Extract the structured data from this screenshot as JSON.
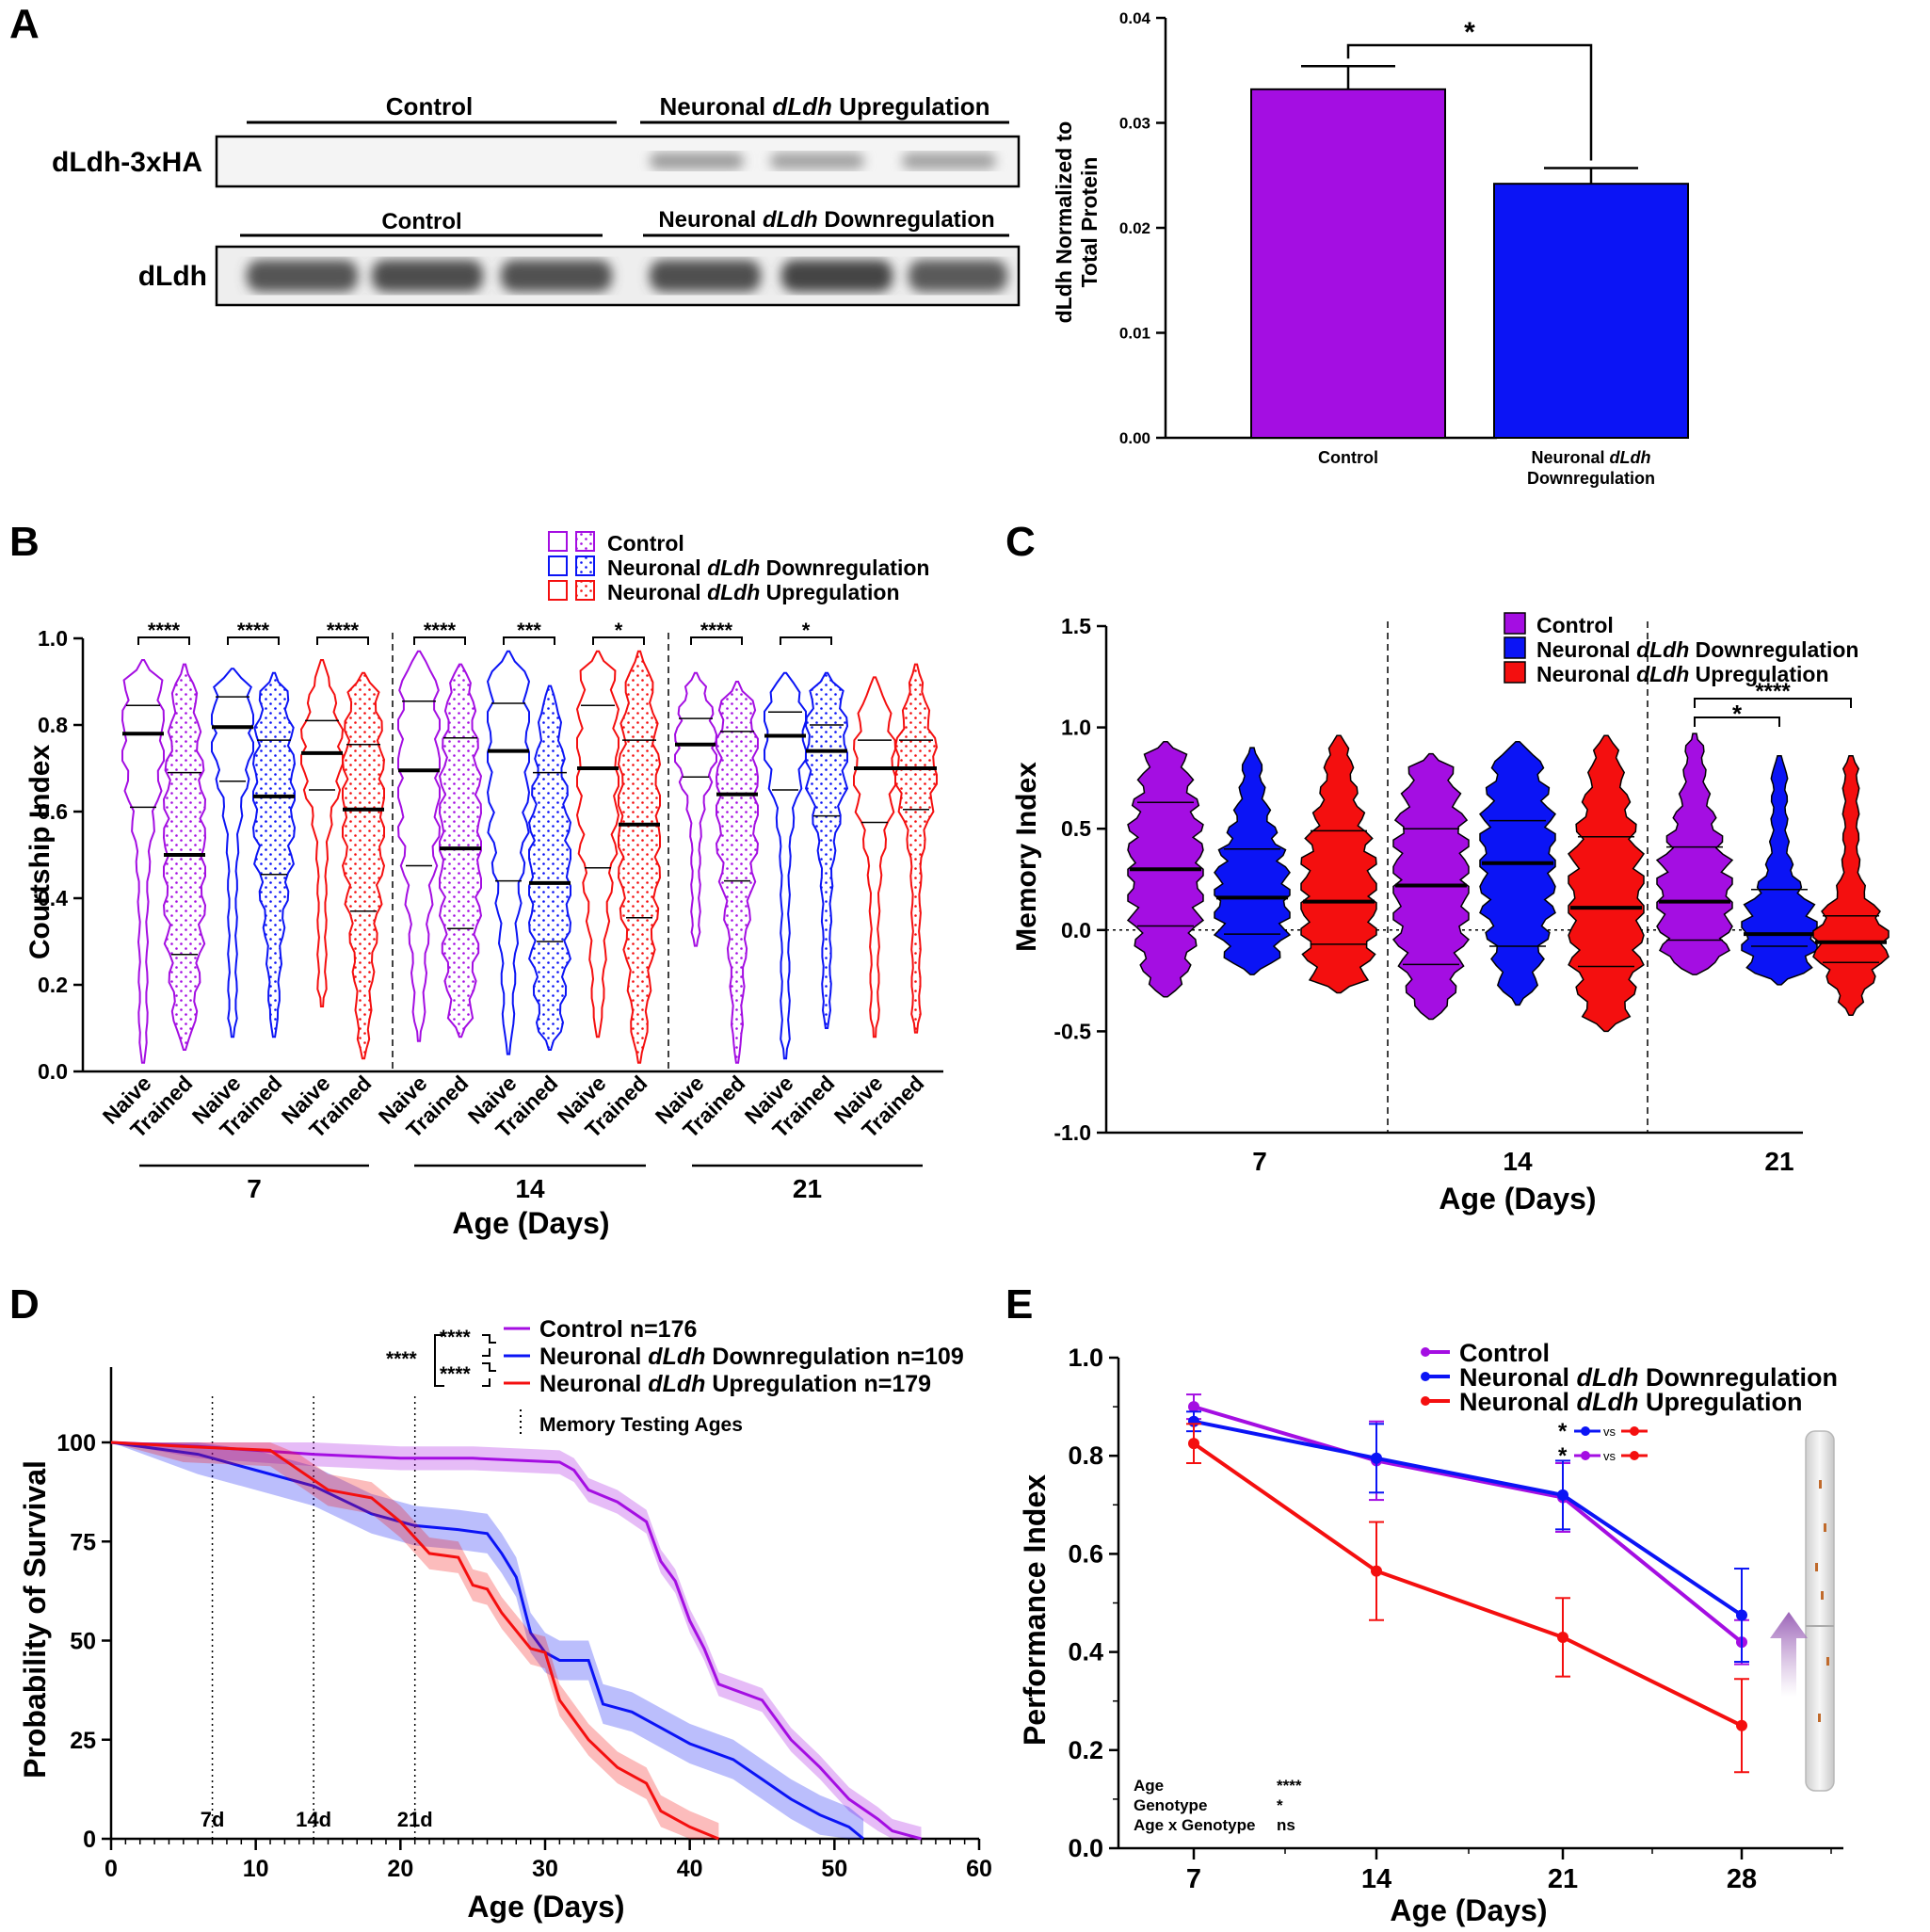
{
  "colors": {
    "control": "#a40ee2",
    "down": "#0b14f5",
    "up": "#f40f0f",
    "axis": "#000000",
    "blot_bg": "#f4f4f4"
  },
  "panel_labels": [
    "A",
    "B",
    "C",
    "D",
    "E"
  ],
  "panelA": {
    "blot_top": {
      "row_label": "dLdh-3xHA",
      "left_group": "Control",
      "right_group_prefix": "Neuronal ",
      "right_group_italic": "dLdh",
      "right_group_suffix": " Upregulation"
    },
    "blot_bottom": {
      "row_label": "dLdh",
      "left_group": "Control",
      "right_group_prefix": "Neuronal ",
      "right_group_italic": "dLdh",
      "right_group_suffix": " Downregulation"
    }
  },
  "chart_data": [
    {
      "id": "A-bar",
      "type": "bar",
      "ylabel_line1": "dLdh Normalized to",
      "ylabel_line2": "Total Protein",
      "ylim": [
        0,
        0.04
      ],
      "yticks": [
        "0.00",
        "0.01",
        "0.02",
        "0.03",
        "0.04"
      ],
      "categories": [
        "Control",
        "Neuronal dLdh Downregulation"
      ],
      "category_label_lines": [
        [
          "Control"
        ],
        [
          "Neuronal dLdh",
          "Downregulation"
        ]
      ],
      "values": [
        0.0332,
        0.0242
      ],
      "errors": [
        0.0022,
        0.0015
      ],
      "significance": "*"
    },
    {
      "id": "B-violin",
      "type": "violin",
      "ylabel": "Courtship Index",
      "xlabel": "Age (Days)",
      "ylim": [
        0,
        1.0
      ],
      "yticks": [
        "0.0",
        "0.2",
        "0.4",
        "0.6",
        "0.8",
        "1.0"
      ],
      "ages": [
        "7",
        "14",
        "21"
      ],
      "conditions": [
        "Naive",
        "Trained"
      ],
      "legend": [
        {
          "prefix": "Control",
          "italic": "",
          "suffix": ""
        },
        {
          "prefix": "Neuronal ",
          "italic": "dLdh",
          "suffix": " Downregulation"
        },
        {
          "prefix": "Neuronal ",
          "italic": "dLdh",
          "suffix": " Upregulation"
        }
      ],
      "groups": [
        {
          "age": "7",
          "genotype": "Control",
          "naive": {
            "median": 0.78,
            "q1": 0.61,
            "q3": 0.845,
            "min": 0.02,
            "max": 0.95
          },
          "trained": {
            "median": 0.5,
            "q1": 0.27,
            "q3": 0.69,
            "min": 0.05,
            "max": 0.94
          },
          "sig": "****"
        },
        {
          "age": "7",
          "genotype": "Downregulation",
          "naive": {
            "median": 0.795,
            "q1": 0.67,
            "q3": 0.865,
            "min": 0.08,
            "max": 0.93
          },
          "trained": {
            "median": 0.635,
            "q1": 0.455,
            "q3": 0.765,
            "min": 0.08,
            "max": 0.92
          },
          "sig": "****"
        },
        {
          "age": "7",
          "genotype": "Upregulation",
          "naive": {
            "median": 0.735,
            "q1": 0.65,
            "q3": 0.81,
            "min": 0.15,
            "max": 0.95
          },
          "trained": {
            "median": 0.605,
            "q1": 0.37,
            "q3": 0.755,
            "min": 0.03,
            "max": 0.92
          },
          "sig": "****"
        },
        {
          "age": "14",
          "genotype": "Control",
          "naive": {
            "median": 0.695,
            "q1": 0.475,
            "q3": 0.855,
            "min": 0.07,
            "max": 0.97
          },
          "trained": {
            "median": 0.515,
            "q1": 0.33,
            "q3": 0.77,
            "min": 0.08,
            "max": 0.94
          },
          "sig": "****"
        },
        {
          "age": "14",
          "genotype": "Downregulation",
          "naive": {
            "median": 0.74,
            "q1": 0.44,
            "q3": 0.85,
            "min": 0.04,
            "max": 0.97
          },
          "trained": {
            "median": 0.435,
            "q1": 0.3,
            "q3": 0.69,
            "min": 0.05,
            "max": 0.89
          },
          "sig": "***"
        },
        {
          "age": "14",
          "genotype": "Upregulation",
          "naive": {
            "median": 0.7,
            "q1": 0.47,
            "q3": 0.845,
            "min": 0.08,
            "max": 0.97
          },
          "trained": {
            "median": 0.57,
            "q1": 0.355,
            "q3": 0.765,
            "min": 0.02,
            "max": 0.97
          },
          "sig": "*"
        },
        {
          "age": "21",
          "genotype": "Control",
          "naive": {
            "median": 0.755,
            "q1": 0.68,
            "q3": 0.815,
            "min": 0.29,
            "max": 0.92
          },
          "trained": {
            "median": 0.64,
            "q1": 0.44,
            "q3": 0.785,
            "min": 0.02,
            "max": 0.9
          },
          "sig": "****"
        },
        {
          "age": "21",
          "genotype": "Downregulation",
          "naive": {
            "median": 0.775,
            "q1": 0.65,
            "q3": 0.83,
            "min": 0.03,
            "max": 0.92
          },
          "trained": {
            "median": 0.74,
            "q1": 0.59,
            "q3": 0.8,
            "min": 0.1,
            "max": 0.92
          },
          "sig": "*"
        },
        {
          "age": "21",
          "genotype": "Upregulation",
          "naive": {
            "median": 0.7,
            "q1": 0.575,
            "q3": 0.765,
            "min": 0.08,
            "max": 0.91
          },
          "trained": {
            "median": 0.7,
            "q1": 0.605,
            "q3": 0.765,
            "min": 0.09,
            "max": 0.94
          },
          "sig": ""
        }
      ]
    },
    {
      "id": "C-violin",
      "type": "violin",
      "ylabel": "Memory Index",
      "xlabel": "Age (Days)",
      "ylim": [
        -1.0,
        1.5
      ],
      "yticks": [
        "-1.0",
        "-0.5",
        "0.0",
        "0.5",
        "1.0",
        "1.5"
      ],
      "ages": [
        "7",
        "14",
        "21"
      ],
      "legend": [
        {
          "prefix": "Control",
          "italic": "",
          "suffix": ""
        },
        {
          "prefix": "Neuronal ",
          "italic": "dLdh",
          "suffix": " Downregulation"
        },
        {
          "prefix": "Neuronal ",
          "italic": "dLdh",
          "suffix": " Upregulation"
        }
      ],
      "groups": [
        {
          "age": "7",
          "genotype": "Control",
          "median": 0.3,
          "q1": 0.02,
          "q3": 0.63,
          "min": -0.33,
          "max": 0.93
        },
        {
          "age": "7",
          "genotype": "Downregulation",
          "median": 0.16,
          "q1": -0.02,
          "q3": 0.4,
          "min": -0.22,
          "max": 0.9
        },
        {
          "age": "7",
          "genotype": "Upregulation",
          "median": 0.14,
          "q1": -0.07,
          "q3": 0.49,
          "min": -0.31,
          "max": 0.96
        },
        {
          "age": "14",
          "genotype": "Control",
          "median": 0.22,
          "q1": -0.17,
          "q3": 0.5,
          "min": -0.44,
          "max": 0.87
        },
        {
          "age": "14",
          "genotype": "Downregulation",
          "median": 0.33,
          "q1": -0.08,
          "q3": 0.54,
          "min": -0.37,
          "max": 0.93
        },
        {
          "age": "14",
          "genotype": "Upregulation",
          "median": 0.11,
          "q1": -0.18,
          "q3": 0.46,
          "min": -0.5,
          "max": 0.96
        },
        {
          "age": "21",
          "genotype": "Control",
          "median": 0.14,
          "q1": -0.05,
          "q3": 0.41,
          "min": -0.22,
          "max": 0.97
        },
        {
          "age": "21",
          "genotype": "Downregulation",
          "median": -0.02,
          "q1": -0.08,
          "q3": 0.2,
          "min": -0.27,
          "max": 0.86
        },
        {
          "age": "21",
          "genotype": "Upregulation",
          "median": -0.06,
          "q1": -0.16,
          "q3": 0.07,
          "min": -0.42,
          "max": 0.86
        }
      ],
      "significance": [
        {
          "age": "21",
          "from": "Control",
          "to": "Downregulation",
          "label": "*"
        },
        {
          "age": "21",
          "from": "Control",
          "to": "Upregulation",
          "label": "****"
        }
      ]
    },
    {
      "id": "D-survival",
      "type": "line",
      "ylabel": "Probability of Survival",
      "xlabel": "Age (Days)",
      "xlim": [
        0,
        60
      ],
      "ylim": [
        0,
        110
      ],
      "xticks": [
        "0",
        "10",
        "20",
        "30",
        "40",
        "50",
        "60"
      ],
      "yticks": [
        "0",
        "25",
        "50",
        "75",
        "100"
      ],
      "testing_ages": [
        7,
        14,
        21
      ],
      "testing_age_labels": [
        "7d",
        "14d",
        "21d"
      ],
      "testing_legend": "Memory Testing Ages",
      "stats_outer": "****",
      "stats_pair1": "****",
      "stats_pair2": "****",
      "series": [
        {
          "name_prefix": "Control n=176",
          "name_italic": "",
          "name_suffix": "",
          "key": "control",
          "x": [
            0,
            6,
            10,
            14,
            20,
            25,
            31,
            32,
            33,
            35,
            37,
            38,
            39,
            40,
            41,
            42,
            45,
            47,
            49,
            51,
            53,
            54,
            55,
            56
          ],
          "y": [
            100,
            99,
            98,
            97,
            96,
            96,
            95,
            93,
            88,
            85,
            80,
            70,
            65,
            55,
            48,
            39,
            35,
            25,
            18,
            10,
            5,
            2,
            1,
            0
          ],
          "band": 3
        },
        {
          "name_prefix": "Neuronal ",
          "name_italic": "dLdh",
          "name_suffix": " Downregulation n=109",
          "key": "down",
          "x": [
            0,
            6,
            10,
            14,
            18,
            21,
            24,
            26,
            27,
            28,
            29,
            30,
            31,
            33,
            34,
            36,
            38,
            40,
            43,
            45,
            47,
            49,
            51,
            52
          ],
          "y": [
            100,
            97,
            93,
            89,
            82,
            79,
            78,
            77,
            72,
            66,
            52,
            47,
            45,
            45,
            34,
            32,
            28,
            24,
            20,
            15,
            10,
            6,
            3,
            0
          ],
          "band": 5
        },
        {
          "name_prefix": "Neuronal ",
          "name_italic": "dLdh",
          "name_suffix": " Upregulation n=179",
          "key": "up",
          "x": [
            0,
            5,
            11,
            13,
            15,
            18,
            20,
            22,
            24,
            25,
            26,
            27,
            29,
            30,
            31,
            33,
            35,
            37,
            38,
            40,
            42
          ],
          "y": [
            100,
            99,
            98,
            93,
            88,
            86,
            80,
            72,
            71,
            64,
            63,
            57,
            48,
            47,
            35,
            25,
            18,
            14,
            7,
            3,
            0
          ],
          "band": 4
        }
      ]
    },
    {
      "id": "E-performance",
      "type": "line",
      "ylabel": "Performance  Index",
      "xlabel": "Age (Days)",
      "ylim": [
        0,
        1.0
      ],
      "yticks": [
        "0.0",
        "0.2",
        "0.4",
        "0.6",
        "0.8",
        "1.0"
      ],
      "x": [
        "7",
        "14",
        "21",
        "28"
      ],
      "series": [
        {
          "name_prefix": "Control",
          "name_italic": "",
          "name_suffix": "",
          "key": "control",
          "values": [
            0.9,
            0.79,
            0.715,
            0.42
          ],
          "errors": [
            0.025,
            0.08,
            0.07,
            0.045
          ]
        },
        {
          "name_prefix": "Neuronal ",
          "name_italic": "dLdh",
          "name_suffix": " Downregulation",
          "key": "down",
          "values": [
            0.87,
            0.795,
            0.72,
            0.475
          ],
          "errors": [
            0.02,
            0.07,
            0.07,
            0.095
          ]
        },
        {
          "name_prefix": "Neuronal ",
          "name_italic": "dLdh",
          "name_suffix": " Upregulation",
          "key": "up",
          "values": [
            0.825,
            0.565,
            0.43,
            0.25
          ],
          "errors": [
            0.04,
            0.1,
            0.08,
            0.095
          ]
        }
      ],
      "vs_label": "vs",
      "vs_star": "*",
      "stats": [
        {
          "label": "Age",
          "value": "****"
        },
        {
          "label": "Genotype",
          "value": "*"
        },
        {
          "label": "Age x Genotype",
          "value": "ns"
        }
      ]
    }
  ]
}
